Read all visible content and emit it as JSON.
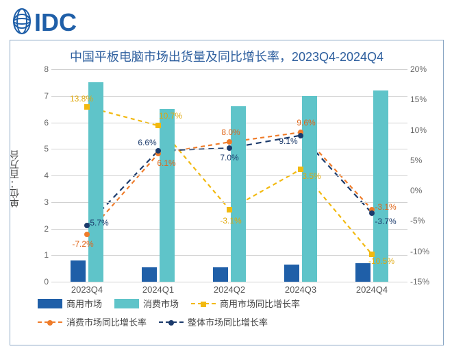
{
  "logo_text": "IDC",
  "title": "中国平板电脑市场出货量及同比增长率，2023Q4-2024Q4",
  "yaxis_label_left": "单位：百万台",
  "categories": [
    "2023Q4",
    "2024Q1",
    "2024Q2",
    "2024Q3",
    "2024Q4"
  ],
  "left_axis": {
    "min": 0,
    "max": 8,
    "ticks": [
      0,
      1,
      2,
      3,
      4,
      5,
      6,
      7,
      8
    ]
  },
  "right_axis": {
    "min": -15,
    "max": 20,
    "ticks": [
      -15,
      -10,
      -5,
      0,
      5,
      10,
      15,
      20
    ],
    "suffix": "%"
  },
  "bars": {
    "commercial": {
      "color": "#1f5fa8",
      "values": [
        0.8,
        0.55,
        0.55,
        0.65,
        0.7
      ],
      "width": 22
    },
    "consumer": {
      "color": "#5fc4c9",
      "values": [
        7.5,
        6.5,
        6.6,
        7.0,
        7.2
      ],
      "width": 22
    }
  },
  "lines": {
    "commercial_yoy": {
      "color": "#f2b90f",
      "dash": "6 5",
      "marker": "square",
      "values": [
        13.8,
        10.7,
        -3.1,
        3.5,
        -10.5
      ],
      "labels": [
        "13.8%",
        "10.7%",
        "-3.1%",
        "3.5%",
        "-10.5%"
      ],
      "label_color": "#e0a80c"
    },
    "consumer_yoy": {
      "color": "#ef7c2a",
      "dash": "6 5",
      "marker": "circle",
      "values": [
        -7.2,
        6.1,
        8.0,
        9.6,
        -3.1
      ],
      "labels": [
        "-7.2%",
        "6.1%",
        "8.0%",
        "9.6%",
        "-3.1%"
      ],
      "label_color": "#e0661a"
    },
    "total_yoy": {
      "color": "#1b3a6b",
      "dash": "8 6",
      "marker": "circle",
      "values": [
        -5.7,
        6.6,
        7.0,
        9.1,
        -3.7
      ],
      "labels": [
        "-5.7%",
        "6.6%",
        "7.0%",
        "9.1%",
        "-3.7%"
      ],
      "label_color": "#1b3a6b"
    }
  },
  "legend": [
    {
      "type": "swatch",
      "color": "#1f5fa8",
      "label": "商用市场"
    },
    {
      "type": "swatch",
      "color": "#5fc4c9",
      "label": "消费市场"
    },
    {
      "type": "line",
      "color": "#f2b90f",
      "marker": "square",
      "label": "商用市场同比增长率"
    },
    {
      "type": "line",
      "color": "#ef7c2a",
      "marker": "circle",
      "label": "消费市场同比增长率"
    },
    {
      "type": "line",
      "color": "#1b3a6b",
      "marker": "circle",
      "label": "整体市场同比增长率"
    }
  ],
  "label_offsets": {
    "commercial_yoy": [
      [
        -8,
        -12
      ],
      [
        18,
        -14
      ],
      [
        2,
        16
      ],
      [
        16,
        10
      ],
      [
        14,
        10
      ]
    ],
    "consumer_yoy": [
      [
        -6,
        14
      ],
      [
        12,
        14
      ],
      [
        2,
        -14
      ],
      [
        8,
        -14
      ],
      [
        20,
        -4
      ]
    ],
    "total_ys18": [],
    "total_yoy": [
      [
        16,
        -4
      ],
      [
        -16,
        -12
      ],
      [
        0,
        14
      ],
      [
        -18,
        8
      ],
      [
        20,
        12
      ]
    ]
  }
}
